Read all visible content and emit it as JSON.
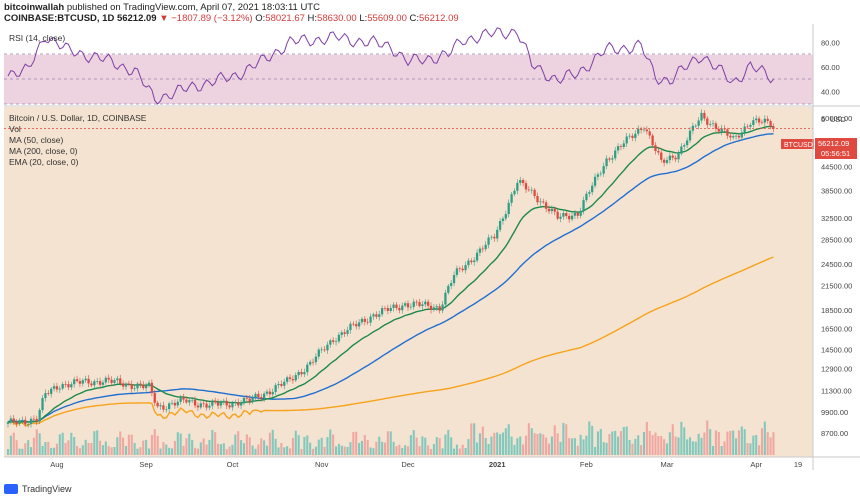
{
  "header": {
    "author": "bitcoinwallah",
    "published_text": "published on TradingView.com, April 07, 2021 18:03:11 UTC",
    "symbol": "COINBASE:BTCUSD, 1D",
    "last": "56212.09",
    "change": "▼ −1807.89 (−3.12%)",
    "open_label": "O:",
    "open": "58021.67",
    "high_label": "H:",
    "high": "58630.00",
    "low_label": "L:",
    "low": "55609.00",
    "close_label": "C:",
    "close": "56212.09"
  },
  "rsi_panel": {
    "label": "RSI (14, close)",
    "ticks": [
      "80.00",
      "60.00",
      "40.00"
    ],
    "colors": {
      "line": "#7e3fa6",
      "band": "#e6c8d8",
      "bg": "#f3e5ea"
    }
  },
  "main_panel": {
    "title": "Bitcoin / U.S. Dollar, 1D, COINBASE",
    "indicators": [
      "Vol",
      "MA (50, close)",
      "MA (200, close, 0)",
      "EMA (20, close, 0)"
    ],
    "currency": "USD",
    "price_ticks": [
      "60000.00",
      "52000.00",
      "44500.00",
      "38500.00",
      "32500.00",
      "28500.00",
      "24500.00",
      "21500.00",
      "18500.00",
      "16500.00",
      "14500.00",
      "12900.00",
      "11300.00",
      "9900.00",
      "8700.00"
    ],
    "top_clipped_tick": "6",
    "price_badge": {
      "symbol": "BTCUSD",
      "price": "56212.09",
      "countdown": "05:56:51",
      "color": "#e0493f"
    },
    "date_ticks": [
      "Aug",
      "Sep",
      "Oct",
      "Nov",
      "Dec",
      "2021",
      "Feb",
      "Mar",
      "Apr",
      "19"
    ],
    "colors": {
      "bg": "#f5e3d1",
      "up": "#2e9e86",
      "down": "#e0493f",
      "ma50": "#1f6fd1",
      "ma200": "#f7a21b",
      "ema20": "#1d8a4a",
      "vol_up": "#82c9bd",
      "vol_down": "#f0a7a1"
    }
  },
  "chart_data": {
    "type": "candlestick",
    "title": "Bitcoin / U.S. Dollar, 1D, COINBASE",
    "ylabel": "USD",
    "y_scale": "log",
    "ylim": [
      7600,
      63000
    ],
    "x_start": "2020-07-15",
    "x_end": "2021-04-19",
    "anchors": [
      [
        "2020-07-15",
        9200
      ],
      [
        "2020-07-25",
        9500
      ],
      [
        "2020-07-28",
        11000
      ],
      [
        "2020-08-02",
        11700
      ],
      [
        "2020-08-17",
        12000
      ],
      [
        "2020-09-02",
        11500
      ],
      [
        "2020-09-05",
        10200
      ],
      [
        "2020-09-15",
        10600
      ],
      [
        "2020-09-23",
        10300
      ],
      [
        "2020-10-07",
        10600
      ],
      [
        "2020-10-20",
        11900
      ],
      [
        "2020-10-28",
        13300
      ],
      [
        "2020-11-05",
        15500
      ],
      [
        "2020-11-18",
        17800
      ],
      [
        "2020-11-30",
        19200
      ],
      [
        "2020-12-12",
        18800
      ],
      [
        "2020-12-17",
        22800
      ],
      [
        "2020-12-31",
        29000
      ],
      [
        "2021-01-08",
        40500
      ],
      [
        "2021-01-14",
        37500
      ],
      [
        "2021-01-22",
        32500
      ],
      [
        "2021-01-29",
        33500
      ],
      [
        "2021-02-08",
        46500
      ],
      [
        "2021-02-21",
        57500
      ],
      [
        "2021-02-27",
        45500
      ],
      [
        "2021-03-05",
        48500
      ],
      [
        "2021-03-13",
        60800
      ],
      [
        "2021-03-24",
        52500
      ],
      [
        "2021-03-30",
        58800
      ],
      [
        "2021-04-06",
        58000
      ],
      [
        "2021-04-07",
        56212
      ]
    ],
    "rsi": [
      [
        "2020-07-15",
        55
      ],
      [
        "2020-07-22",
        57
      ],
      [
        "2020-07-28",
        86
      ],
      [
        "2020-08-05",
        73
      ],
      [
        "2020-08-15",
        68
      ],
      [
        "2020-08-28",
        57
      ],
      [
        "2020-09-04",
        34
      ],
      [
        "2020-09-20",
        46
      ],
      [
        "2020-10-01",
        52
      ],
      [
        "2020-10-11",
        64
      ],
      [
        "2020-10-21",
        80
      ],
      [
        "2020-11-06",
        84
      ],
      [
        "2020-11-25",
        77
      ],
      [
        "2020-12-01",
        64
      ],
      [
        "2020-12-15",
        70
      ],
      [
        "2020-12-20",
        82
      ],
      [
        "2021-01-02",
        88
      ],
      [
        "2021-01-08",
        89
      ],
      [
        "2021-01-13",
        62
      ],
      [
        "2021-01-22",
        49
      ],
      [
        "2021-01-29",
        55
      ],
      [
        "2021-02-08",
        74
      ],
      [
        "2021-02-20",
        77
      ],
      [
        "2021-02-25",
        52
      ],
      [
        "2021-03-02",
        49
      ],
      [
        "2021-03-13",
        70
      ],
      [
        "2021-03-24",
        47
      ],
      [
        "2021-03-30",
        61
      ],
      [
        "2021-04-07",
        50
      ]
    ]
  }
}
